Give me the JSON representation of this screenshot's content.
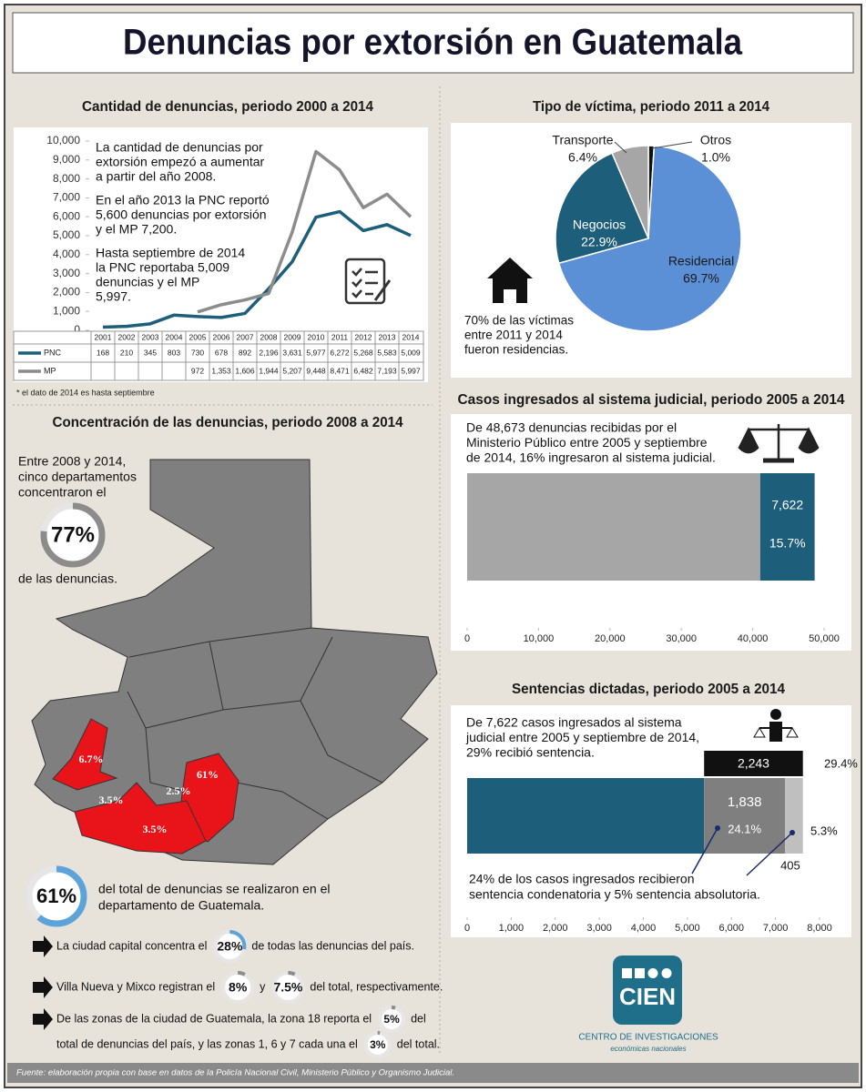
{
  "title": "Denuncias por extorsión en Guatemala",
  "chart_data": [
    {
      "type": "line",
      "title": "Cantidad de denuncias, periodo 2000 a 2014",
      "categories": [
        "2001",
        "2002",
        "2003",
        "2004",
        "2005",
        "2006",
        "2007",
        "2008",
        "2009",
        "2010",
        "2011",
        "2012",
        "2013",
        "2014"
      ],
      "series": [
        {
          "name": "PNC",
          "color": "#1d5e7a",
          "values": [
            168,
            210,
            345,
            803,
            730,
            678,
            892,
            2196,
            3631,
            5977,
            6272,
            5268,
            5583,
            5009
          ],
          "value_labels": [
            "168",
            "210",
            "345",
            "803",
            "730",
            "678",
            "892",
            "2,196",
            "3,631",
            "5,977",
            "6,272",
            "5,268",
            "5,583",
            "5,009"
          ]
        },
        {
          "name": "MP",
          "color": "#8c8c8c",
          "values": [
            null,
            null,
            null,
            null,
            972,
            1353,
            1606,
            1944,
            5207,
            9448,
            8471,
            6482,
            7193,
            5997
          ],
          "value_labels": [
            null,
            null,
            null,
            null,
            "972",
            "1,353",
            "1,606",
            "1,944",
            "5,207",
            "9,448",
            "8,471",
            "6,482",
            "7,193",
            "5,997"
          ]
        }
      ],
      "ylim": [
        0,
        10000
      ],
      "yticks": [
        0,
        {
          "value": 1000,
          "label": "1,000"
        },
        {
          "value": 2000,
          "label": "2,000"
        },
        {
          "value": 3000,
          "label": "3,000"
        },
        {
          "value": 4000,
          "label": "4,000"
        },
        {
          "value": 5000,
          "label": "5,000"
        },
        {
          "value": 6000,
          "label": "6,000"
        },
        {
          "value": 7000,
          "label": "7,000"
        },
        {
          "value": 8000,
          "label": "8,000"
        },
        {
          "value": 9000,
          "label": "9,000"
        },
        {
          "value": 10000,
          "label": "10,000"
        }
      ],
      "annotations": [
        [
          "La cantidad de denuncias por",
          "extorsión empezó a aumentar",
          "a partir del año 2008."
        ],
        [
          "En el año 2013 la PNC reportó",
          "5,600 denuncias por extorsión",
          "y el MP 7,200."
        ],
        [
          "Hasta septiembre de 2014",
          "la PNC reportaba 5,009",
          "denuncias y el MP",
          "5,997."
        ]
      ],
      "footnote": "* el dato de 2014 es hasta septiembre"
    },
    {
      "type": "pie",
      "title": "Tipo de víctima, periodo 2011 a 2014",
      "categories": [
        "Residencial",
        "Negocios",
        "Transporte",
        "Otros"
      ],
      "values": [
        69.7,
        22.9,
        6.4,
        1.0
      ],
      "value_labels": [
        "69.7%",
        "22.9%",
        "6.4%",
        "1.0%"
      ],
      "colors": [
        "#5b8fd6",
        "#1d5e7a",
        "#a6a6a6",
        "#111111"
      ],
      "note": [
        "70% de las víctimas",
        "entre 2011 y 2014",
        "fueron residencias."
      ]
    },
    {
      "type": "bar",
      "orientation": "horizontal",
      "title": "Casos ingresados al sistema judicial, periodo 2005 a 2014",
      "annotation": [
        "De 48,673 denuncias recibidas por el",
        "Ministerio Público entre 2005 y septiembre",
        "de 2014, 16% ingresaron al sistema judicial."
      ],
      "segments": [
        {
          "value": 41051,
          "color": "#a6a6a6"
        },
        {
          "value": 7622,
          "color": "#1d5e7a",
          "value_label": "7,622",
          "share_label": "15.7%"
        }
      ],
      "xlim": [
        0,
        50000
      ],
      "xticks": [
        0,
        {
          "value": 10000,
          "label": "10,000"
        },
        {
          "value": 20000,
          "label": "20,000"
        },
        {
          "value": 30000,
          "label": "30,000"
        },
        {
          "value": 40000,
          "label": "40,000"
        },
        {
          "value": 50000,
          "label": "50,000"
        }
      ]
    },
    {
      "type": "bar",
      "orientation": "horizontal",
      "title": "Sentencias dictadas, periodo 2005 a 2014",
      "annotation": [
        "De 7,622 casos ingresados al sistema",
        "judicial entre 2005 y septiembre de 2014,",
        "29% recibió sentencia."
      ],
      "segments": [
        {
          "value": 5379,
          "color": "#1d5e7a"
        },
        {
          "value": 1838,
          "color": "#7f7f7f",
          "value_label": "1,838",
          "share_label": "24.1%"
        },
        {
          "value": 405,
          "color": "#bfbfbf",
          "value_label": "405",
          "share_label": "5.3%"
        }
      ],
      "upper": {
        "value": 2243,
        "color": "#111111",
        "value_label": "2,243",
        "share_label": "29.4%"
      },
      "note": [
        "24% de los casos ingresados recibieron",
        "sentencia condenatoria y 5% sentencia absolutoria."
      ],
      "xlim": [
        0,
        8000
      ],
      "xticks": [
        0,
        {
          "value": 1000,
          "label": "1,000"
        },
        {
          "value": 2000,
          "label": "2,000"
        },
        {
          "value": 3000,
          "label": "3,000"
        },
        {
          "value": 4000,
          "label": "4,000"
        },
        {
          "value": 5000,
          "label": "5,000"
        },
        {
          "value": 6000,
          "label": "6,000"
        },
        {
          "value": 7000,
          "label": "7,000"
        },
        {
          "value": 8000,
          "label": "8,000"
        }
      ]
    }
  ],
  "concentration": {
    "title": "Concentración de las denuncias, periodo 2008 a 2014",
    "intro": [
      "Entre 2008 y 2014,",
      "cinco departamentos",
      "concentraron el"
    ],
    "ring": {
      "value": 77,
      "label": "77%",
      "color": "#8c8c8c"
    },
    "outro": "de las denuncias.",
    "map_labels": [
      "6.7%",
      "3.5%",
      "2.5%",
      "61%",
      "3.5%"
    ],
    "highlight": {
      "ring": {
        "value": 61,
        "label": "61%",
        "color": "#5ba3d9"
      },
      "text": [
        "del total de  denuncias se realizaron en el",
        "departamento de Guatemala."
      ]
    },
    "facts": [
      [
        {
          "text": "La ciudad capital concentra el"
        },
        {
          "value": 28,
          "label": "28%",
          "color": "#5ba3d9"
        },
        {
          "text": "de todas las denuncias del país."
        }
      ],
      [
        {
          "text": "Villa Nueva y Mixco registran el"
        },
        {
          "value": 8,
          "label": "8%",
          "color": "#8c8c8c"
        },
        {
          "text": "y"
        },
        {
          "value": 7.5,
          "label": "7.5%",
          "color": "#8c8c8c"
        },
        {
          "text": "del total, respectivamente."
        }
      ],
      [
        {
          "text": "De las zonas de la ciudad de Guatemala, la zona 18 reporta el"
        },
        {
          "value": 5,
          "label": "5%",
          "color": "#8c8c8c"
        },
        {
          "text": "del"
        }
      ],
      [
        {
          "text": "total de denuncias del país, y las zonas 1, 6 y 7 cada una el"
        },
        {
          "value": 3,
          "label": "3%",
          "color": "#8c8c8c"
        },
        {
          "text": "del total."
        }
      ]
    ]
  },
  "logo": {
    "name": "CIEN",
    "line1": "CENTRO DE INVESTIGACIONES",
    "line2": "económicas nacionales"
  },
  "source": "Fuente: elaboración propia con base en datos de la Policía Nacional Civil, Ministerio Público y Organismo Judicial."
}
